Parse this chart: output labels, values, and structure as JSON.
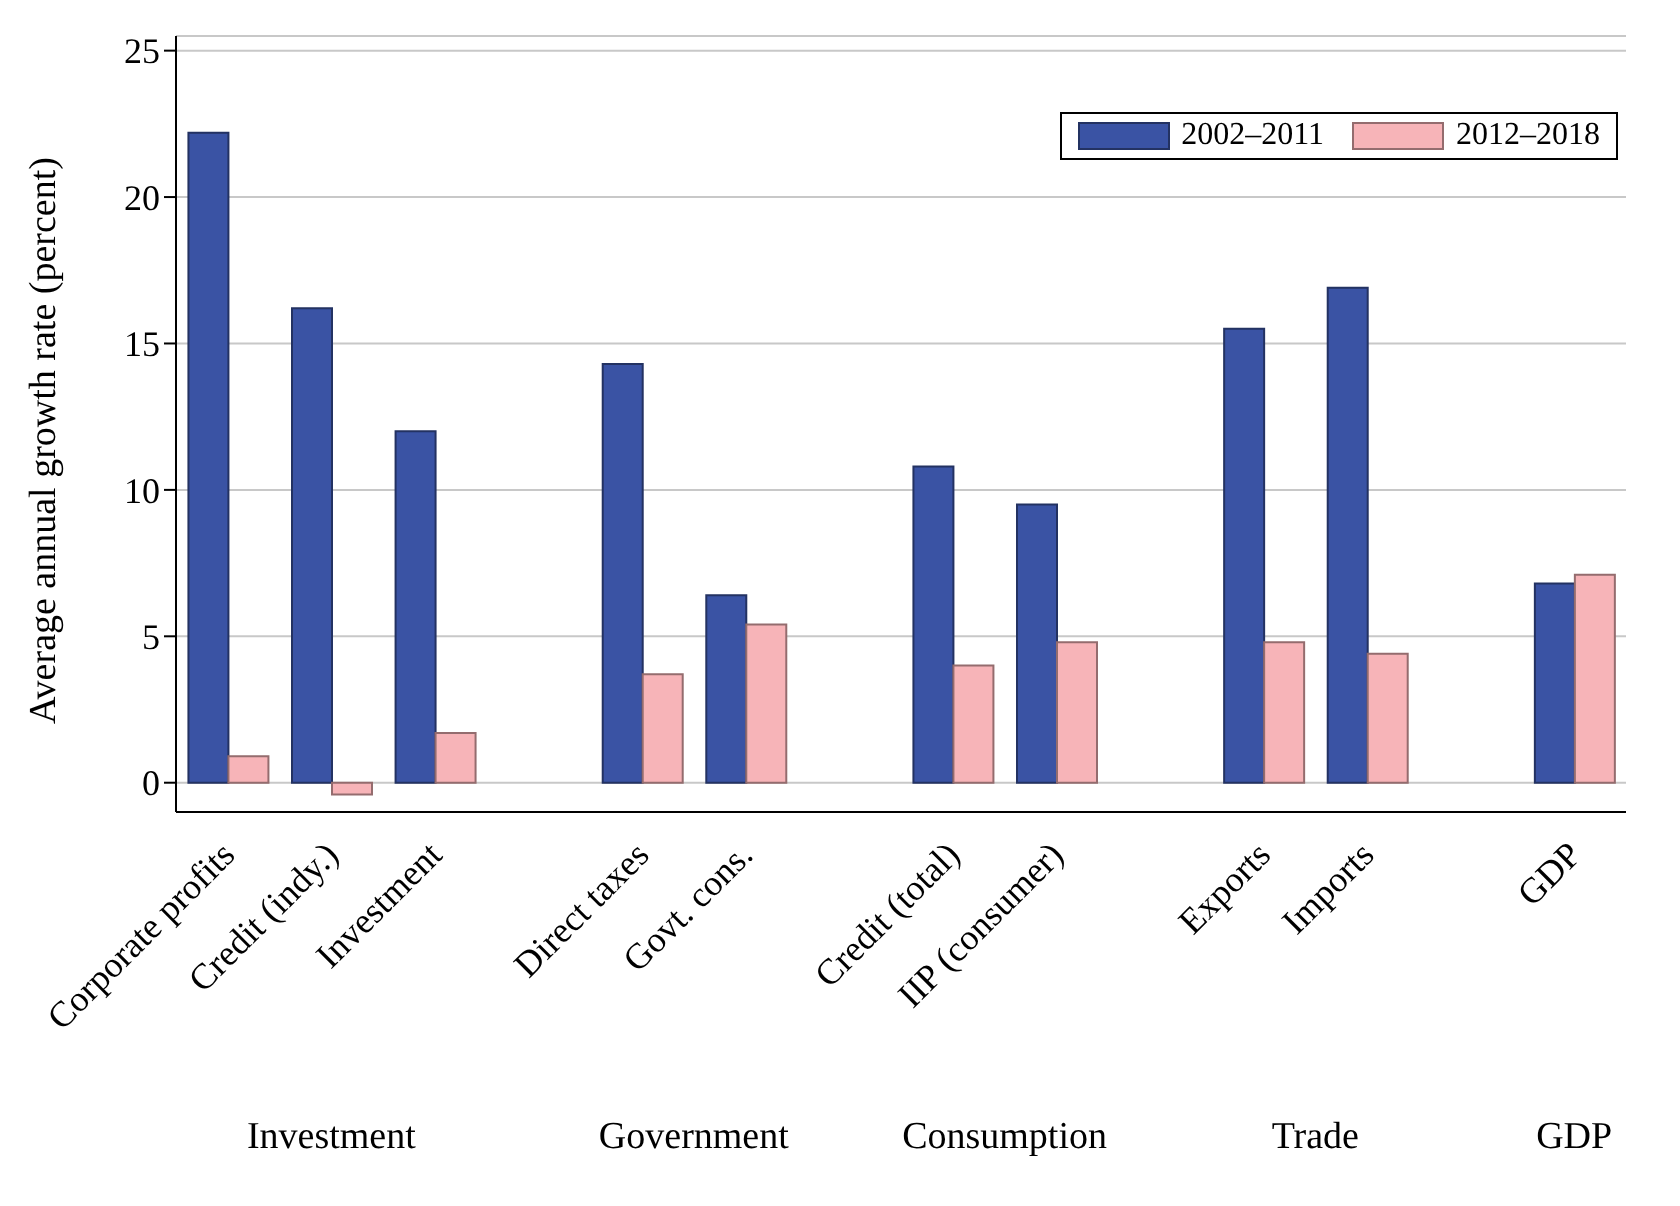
{
  "chart_data": {
    "type": "bar",
    "ylabel": "Average annual growth rate (percent)",
    "categories": [
      "Corporate profits",
      "Credit (indy.)",
      "Investment",
      null,
      "Direct taxes",
      "Govt. cons.",
      null,
      "Credit (total)",
      "IIP (consumer)",
      null,
      "Exports",
      "Imports",
      null,
      "GDP"
    ],
    "series": [
      {
        "name": "2002–2011",
        "color": "#3a53a4",
        "values": [
          22.2,
          16.2,
          12.0,
          null,
          14.3,
          6.4,
          null,
          10.8,
          9.5,
          null,
          15.5,
          16.9,
          null,
          6.8
        ]
      },
      {
        "name": "2012–2018",
        "color": "#f7b4b8",
        "values": [
          0.9,
          -0.4,
          1.7,
          null,
          3.7,
          5.4,
          null,
          4.0,
          4.8,
          null,
          4.8,
          4.4,
          null,
          7.1
        ]
      }
    ],
    "annotations": [
      "Investment",
      "Government",
      "Consumption",
      "Trade",
      "GDP"
    ],
    "ylim": [
      -1,
      25.5
    ],
    "yticks": [
      0,
      5,
      10,
      15,
      20,
      25
    ],
    "grid": "y",
    "legend": "top right"
  }
}
